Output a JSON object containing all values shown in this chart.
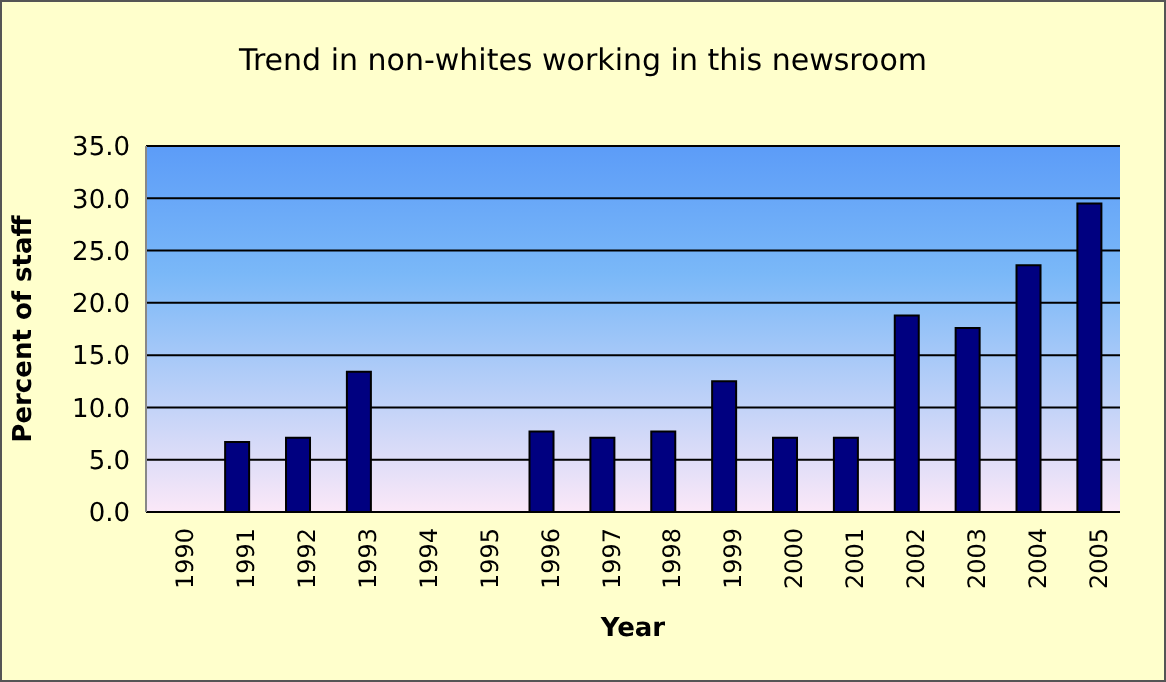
{
  "chart_data": {
    "type": "bar",
    "title": "Trend in non-whites working in this newsroom",
    "xlabel": "Year",
    "ylabel": "Percent of staff",
    "categories": [
      "1990",
      "1991",
      "1992",
      "1993",
      "1994",
      "1995",
      "1996",
      "1997",
      "1998",
      "1999",
      "2000",
      "2001",
      "2002",
      "2003",
      "2004",
      "2005"
    ],
    "values": [
      null,
      6.7,
      7.1,
      13.4,
      null,
      null,
      7.7,
      7.1,
      7.7,
      12.5,
      7.1,
      7.1,
      18.8,
      17.6,
      23.6,
      29.5
    ],
    "color": "#000080",
    "ylim": [
      0,
      35
    ],
    "yticks": [
      {
        "value": 0,
        "label": "0.0"
      },
      {
        "value": 5,
        "label": "5.0"
      },
      {
        "value": 10,
        "label": "10.0"
      },
      {
        "value": 15,
        "label": "15.0"
      },
      {
        "value": 20,
        "label": "20.0"
      },
      {
        "value": 25,
        "label": "25.0"
      },
      {
        "value": 30,
        "label": "30.0"
      },
      {
        "value": 35,
        "label": "35.0"
      }
    ],
    "grid": "y",
    "legend": false
  }
}
